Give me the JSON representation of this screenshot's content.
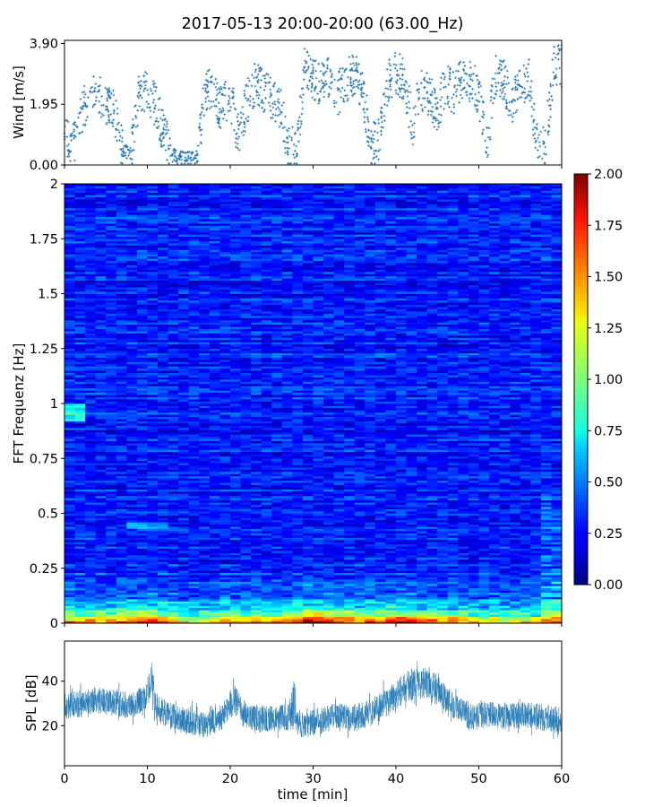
{
  "title": "2017-05-13 20:00-20:00 (63.00_Hz)",
  "colors": {
    "scatter": "#1f77b4",
    "spl": "#1f77b4",
    "colormap": "jet"
  },
  "chart_data": [
    {
      "id": "wind",
      "type": "scatter",
      "ylabel": "Wind [m/s]",
      "xlim": [
        0,
        60
      ],
      "ylim": [
        0,
        4.0
      ],
      "yticks": [
        0.0,
        1.95,
        3.9
      ],
      "ytick_labels": [
        "0.00",
        "1.95",
        "3.90"
      ],
      "marker": "+",
      "trend": {
        "x": [
          0,
          1,
          2,
          3,
          4,
          5,
          6,
          7,
          8,
          9,
          10,
          11,
          12,
          13,
          14,
          15,
          16,
          17,
          18,
          19,
          20,
          21,
          22,
          23,
          24,
          25,
          26,
          27,
          28,
          29,
          30,
          31,
          32,
          33,
          34,
          35,
          36,
          37,
          38,
          39,
          40,
          41,
          42,
          43,
          44,
          45,
          46,
          47,
          48,
          49,
          50,
          51,
          52,
          53,
          54,
          55,
          56,
          57,
          58,
          59,
          60
        ],
        "y": [
          0.9,
          0.6,
          1.6,
          2.2,
          2.3,
          2.0,
          1.7,
          0.5,
          0.4,
          2.2,
          2.4,
          1.9,
          1.0,
          0.3,
          0.2,
          0.2,
          0.2,
          2.5,
          2.2,
          1.8,
          2.2,
          0.9,
          2.0,
          2.6,
          2.4,
          2.1,
          1.9,
          0.6,
          0.5,
          3.1,
          2.8,
          2.6,
          2.9,
          2.3,
          2.7,
          3.0,
          2.4,
          0.6,
          0.9,
          2.7,
          3.0,
          2.7,
          1.3,
          2.4,
          2.3,
          1.7,
          2.6,
          2.3,
          2.8,
          2.7,
          2.3,
          0.7,
          2.9,
          2.7,
          2.0,
          2.5,
          2.8,
          0.7,
          0.6,
          3.1,
          3.2
        ]
      }
    },
    {
      "id": "spectrogram",
      "type": "heatmap",
      "ylabel": "FFT Frequenz [Hz]",
      "xlim": [
        0,
        60
      ],
      "ylim": [
        0,
        2
      ],
      "yticks": [
        0,
        0.25,
        0.5,
        0.75,
        1,
        1.25,
        1.5,
        1.75,
        2
      ],
      "ytick_labels": [
        "0",
        "0.25",
        "0.5",
        "0.75",
        "1",
        "1.25",
        "1.5",
        "1.75",
        "2"
      ],
      "colorbar": {
        "range": [
          0,
          2
        ],
        "ticks": [
          0,
          0.25,
          0.5,
          0.75,
          1,
          1.25,
          1.5,
          1.75,
          2
        ],
        "tick_labels": [
          "0.00",
          "0.25",
          "0.50",
          "0.75",
          "1.00",
          "1.25",
          "1.50",
          "1.75",
          "2.00"
        ]
      },
      "low_frequency_energy": {
        "x": [
          0,
          5,
          10,
          15,
          20,
          25,
          30,
          35,
          40,
          45,
          50,
          55,
          60
        ],
        "value": [
          1.3,
          1.2,
          1.7,
          0.9,
          1.3,
          1.2,
          1.8,
          1.3,
          1.6,
          1.4,
          1.1,
          1.0,
          1.3
        ]
      },
      "background_level": 0.3
    },
    {
      "id": "spl",
      "type": "line",
      "ylabel": "SPL [dB]",
      "xlabel": "time [min]",
      "xlim": [
        0,
        60
      ],
      "ylim": [
        2,
        58
      ],
      "yticks": [
        20,
        40
      ],
      "ytick_labels": [
        "20",
        "40"
      ],
      "xticks": [
        0,
        10,
        20,
        30,
        40,
        50,
        60
      ],
      "xtick_labels": [
        "0",
        "10",
        "20",
        "30",
        "40",
        "50",
        "60"
      ],
      "envelope": {
        "x": [
          0,
          2,
          4,
          6,
          8,
          9,
          10,
          10.5,
          11,
          13,
          15,
          17,
          19,
          20.5,
          21.5,
          22.5,
          25,
          27,
          27.8,
          28,
          29,
          31,
          33,
          35,
          37,
          39,
          41,
          43,
          45,
          47,
          49,
          51,
          53,
          55,
          57,
          59,
          60
        ],
        "mean": [
          29,
          30,
          32,
          30,
          29,
          31,
          33,
          43,
          28,
          24,
          22,
          20,
          24,
          32,
          26,
          24,
          23,
          24,
          30,
          22,
          20,
          23,
          25,
          23,
          26,
          31,
          37,
          40,
          36,
          29,
          24,
          25,
          24,
          25,
          24,
          23,
          22
        ],
        "spread": [
          6,
          6,
          6,
          6,
          6,
          6,
          6,
          8,
          6,
          6,
          6,
          6,
          6,
          7,
          6,
          6,
          6,
          6,
          12,
          6,
          6,
          6,
          6,
          6,
          6,
          7,
          7,
          7,
          7,
          6,
          6,
          6,
          6,
          6,
          6,
          6,
          6
        ]
      }
    }
  ]
}
